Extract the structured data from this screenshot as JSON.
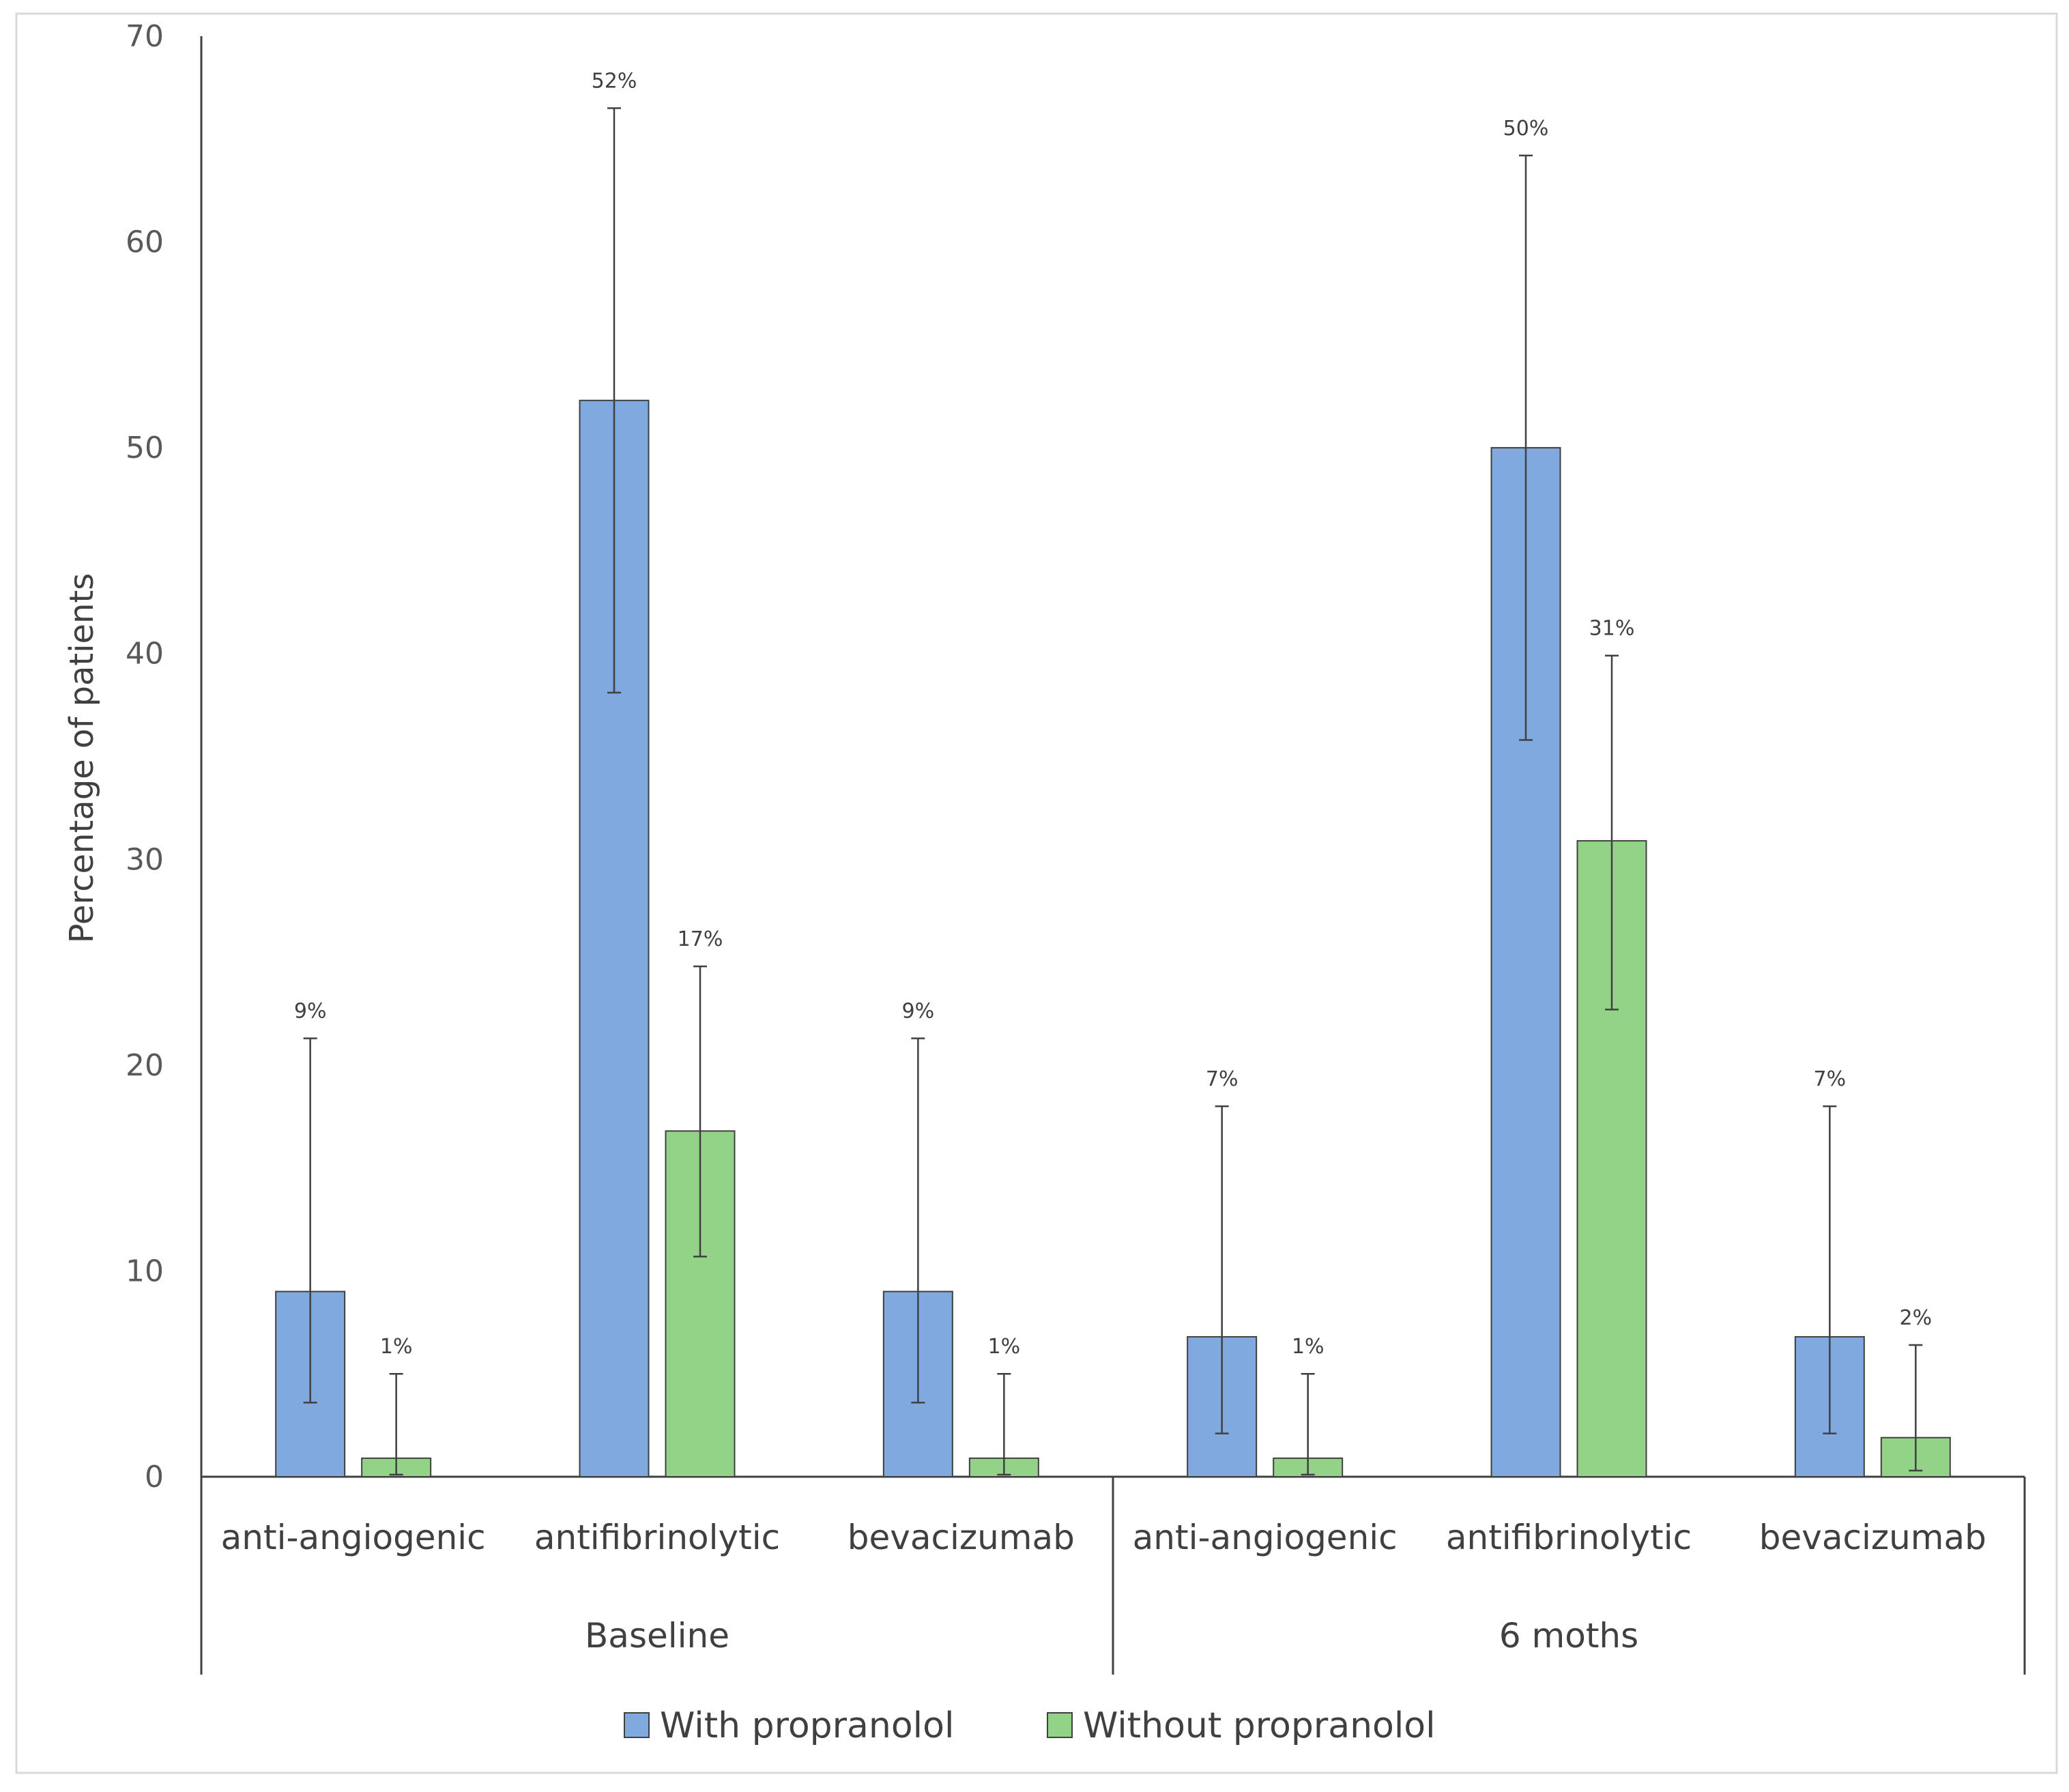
{
  "chart_data": {
    "type": "bar",
    "title": "",
    "xlabel": "",
    "ylabel": "Percentage of patients",
    "ylim": [
      0,
      70
    ],
    "yticks": [
      0,
      10,
      20,
      30,
      40,
      50,
      60,
      70
    ],
    "grid": false,
    "legend_position": "bottom",
    "groups": [
      {
        "name": "Baseline",
        "categories": [
          "anti-angiogenic",
          "antifibrinolytic",
          "bevacizumab"
        ]
      },
      {
        "name": "6 moths",
        "categories": [
          "anti-angiogenic",
          "antifibrinolytic",
          "bevacizumab"
        ]
      }
    ],
    "series": [
      {
        "name": "With propranolol",
        "color": "#7FA9DF",
        "values": [
          9,
          52.3,
          9,
          6.8,
          50,
          6.8
        ],
        "labels": [
          "9%",
          "52%",
          "9%",
          "7%",
          "50%",
          "7%"
        ],
        "error_low": [
          3.6,
          38.1,
          3.6,
          2.1,
          35.8,
          2.1
        ],
        "error_high": [
          21.3,
          66.5,
          21.3,
          18.0,
          64.2,
          18.0
        ]
      },
      {
        "name": "Without propranolol",
        "color": "#92D388",
        "values": [
          0.9,
          16.8,
          0.9,
          0.9,
          30.9,
          1.9
        ],
        "labels": [
          "1%",
          "17%",
          "1%",
          "1%",
          "31%",
          "2%"
        ],
        "error_low": [
          0.1,
          10.7,
          0.1,
          0.1,
          22.7,
          0.3
        ],
        "error_high": [
          5.0,
          24.8,
          5.0,
          5.0,
          39.9,
          6.4
        ]
      }
    ]
  }
}
